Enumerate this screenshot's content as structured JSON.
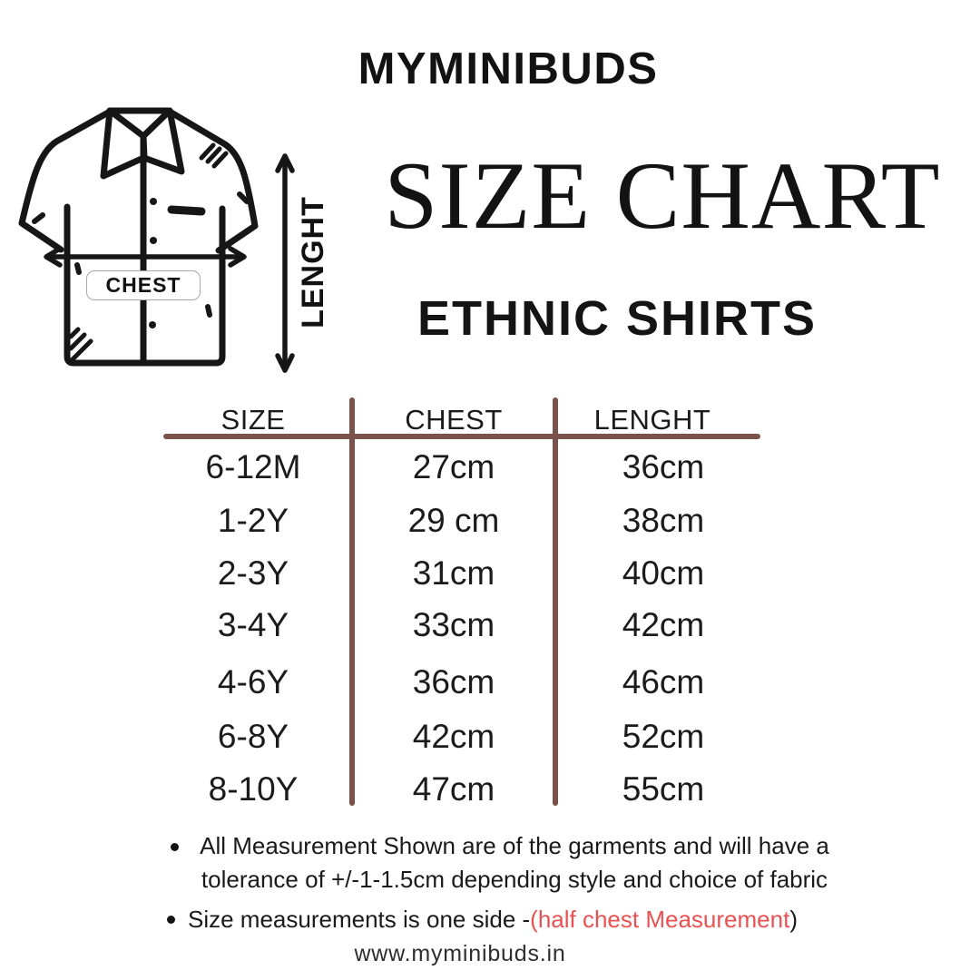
{
  "brand": {
    "name": "MYMINIBUDS"
  },
  "heading": {
    "title": "SIZE CHART",
    "subtitle": "ETHNIC SHIRTS"
  },
  "shirt_diagram": {
    "chest_label": "CHEST",
    "length_label": "LENGHT"
  },
  "size_table": {
    "columns": [
      "SIZE",
      "CHEST",
      "LENGHT"
    ],
    "rows": [
      {
        "size": "6-12M",
        "chest": "27cm",
        "length": "36cm"
      },
      {
        "size": "1-2Y",
        "chest": "29 cm",
        "length": "38cm"
      },
      {
        "size": "2-3Y",
        "chest": "31cm",
        "length": "40cm"
      },
      {
        "size": "3-4Y",
        "chest": "33cm",
        "length": "42cm"
      },
      {
        "size": "4-6Y",
        "chest": "36cm",
        "length": "46cm"
      },
      {
        "size": "6-8Y",
        "chest": "42cm",
        "length": "52cm"
      },
      {
        "size": "8-10Y",
        "chest": "47cm",
        "length": "55cm"
      }
    ],
    "line_color": "#7a524b"
  },
  "notes": {
    "note1": "All Measurement Shown are of the garments and will have a\ntolerance of +/-1-1.5cm depending style and choice of fabric",
    "note2_prefix": "Size measurements is one side -",
    "note2_highlight": "(half chest Measurement",
    "note2_suffix": ")",
    "highlight_color": "#e85252"
  },
  "footer": {
    "website": "www.myminibuds.in"
  },
  "colors": {
    "text": "#161616",
    "table_lines": "#7a524b",
    "highlight": "#e85252"
  }
}
